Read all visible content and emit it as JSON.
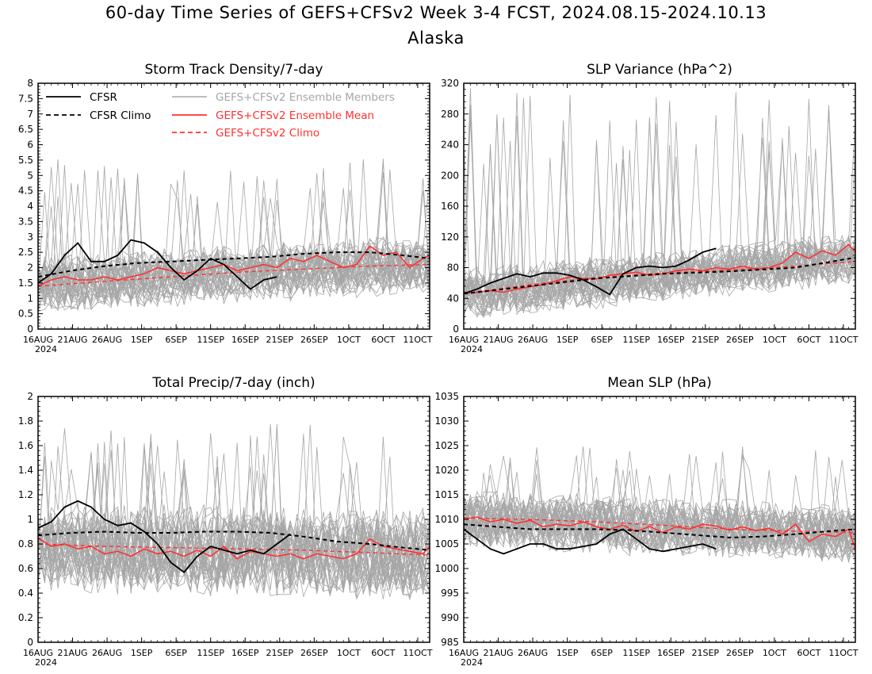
{
  "page": {
    "title": "60-day Time Series of GEFS+CFSv2 Week 3-4 FCST, 2024.08.15-2024.10.13",
    "subtitle": "Alaska"
  },
  "colors": {
    "cfsr": "#000000",
    "ensemble_members": "#a6a6a6",
    "ensemble_mean": "#ff3030",
    "background": "#ffffff"
  },
  "legend": {
    "items": [
      {
        "label": "CFSR",
        "style": "solid",
        "color": "#000000"
      },
      {
        "label": "CFSR Climo",
        "style": "dashed",
        "color": "#000000"
      },
      {
        "label": "GEFS+CFSv2 Ensemble Members",
        "style": "solid",
        "color": "#a6a6a6"
      },
      {
        "label": "GEFS+CFSv2 Ensemble Mean",
        "style": "solid",
        "color": "#ff3030"
      },
      {
        "label": "GEFS+CFSv2 Climo",
        "style": "dashed",
        "color": "#ff3030"
      }
    ]
  },
  "chart_data": [
    {
      "type": "line",
      "title": "Storm Track Density/7-day",
      "x_ticks": [
        "16AUG",
        "21AUG",
        "26AUG",
        "1SEP",
        "6SEP",
        "11SEP",
        "16SEP",
        "21SEP",
        "26SEP",
        "1OCT",
        "6OCT",
        "11OCT"
      ],
      "x_year": "2024",
      "x_range_days": [
        0,
        59
      ],
      "ylim": [
        0,
        8
      ],
      "y_ticks": [
        "0",
        "0.5",
        "1",
        "1.5",
        "2",
        "2.5",
        "3",
        "3.5",
        "4",
        "4.5",
        "5",
        "5.5",
        "6",
        "6.5",
        "7",
        "7.5",
        "8"
      ],
      "ensemble_members": {
        "count": 40,
        "base_start": 1.5,
        "base_end": 2.1,
        "spread": 0.7,
        "max_spike": 5.6
      },
      "series": [
        {
          "name": "CFSR",
          "x_days": [
            0,
            2,
            4,
            6,
            8,
            10,
            12,
            14,
            16,
            18,
            20,
            22,
            24,
            26,
            28,
            30,
            32,
            34,
            36,
            38,
            40
          ],
          "values": [
            1.5,
            1.8,
            2.4,
            2.8,
            2.2,
            2.2,
            2.4,
            2.9,
            2.8,
            2.5,
            2.0,
            1.6,
            1.9,
            2.3,
            2.1,
            1.7,
            1.3,
            1.6,
            1.7,
            null,
            null
          ]
        },
        {
          "name": "CFSR Climo",
          "x_days": [
            0,
            5,
            10,
            15,
            20,
            25,
            30,
            35,
            40,
            45,
            50,
            55,
            59
          ],
          "values": [
            1.7,
            1.9,
            2.05,
            2.15,
            2.2,
            2.25,
            2.3,
            2.35,
            2.45,
            2.5,
            2.5,
            2.4,
            2.3
          ]
        },
        {
          "name": "GEFS+CFSv2 Ensemble Mean",
          "x_days": [
            0,
            2,
            4,
            6,
            8,
            10,
            12,
            14,
            16,
            18,
            20,
            22,
            24,
            26,
            28,
            30,
            32,
            34,
            36,
            38,
            40,
            42,
            44,
            46,
            48,
            50,
            52,
            54,
            56,
            58,
            59
          ],
          "values": [
            1.4,
            1.6,
            1.7,
            1.6,
            1.6,
            1.7,
            1.6,
            1.7,
            1.8,
            2.0,
            1.9,
            1.8,
            1.9,
            2.0,
            2.1,
            1.9,
            2.0,
            2.1,
            2.0,
            2.3,
            2.2,
            2.4,
            2.2,
            2.0,
            2.1,
            2.7,
            2.4,
            2.5,
            2.0,
            2.3,
            2.4
          ]
        },
        {
          "name": "GEFS+CFSv2 Climo",
          "x_days": [
            0,
            10,
            20,
            30,
            40,
            50,
            59
          ],
          "values": [
            1.4,
            1.55,
            1.7,
            1.85,
            1.95,
            2.05,
            2.1
          ]
        }
      ]
    },
    {
      "type": "line",
      "title": "SLP Variance (hPa^2)",
      "x_ticks": [
        "16AUG",
        "21AUG",
        "26AUG",
        "1SEP",
        "6SEP",
        "11SEP",
        "16SEP",
        "21SEP",
        "26SEP",
        "1OCT",
        "6OCT",
        "11OCT"
      ],
      "x_year": "2024",
      "x_range_days": [
        0,
        59
      ],
      "ylim": [
        0,
        320
      ],
      "y_ticks": [
        "0",
        "40",
        "80",
        "120",
        "160",
        "200",
        "240",
        "280",
        "320"
      ],
      "ensemble_members": {
        "count": 40,
        "base_start": 45,
        "base_end": 92,
        "spread": 25,
        "max_spike": 315
      },
      "series": [
        {
          "name": "CFSR",
          "x_days": [
            0,
            2,
            4,
            6,
            8,
            10,
            12,
            14,
            16,
            18,
            20,
            22,
            24,
            26,
            28,
            30,
            32,
            34,
            36,
            38
          ],
          "values": [
            46,
            52,
            60,
            66,
            72,
            68,
            73,
            73,
            70,
            64,
            55,
            45,
            72,
            80,
            82,
            80,
            82,
            90,
            100,
            105
          ]
        },
        {
          "name": "CFSR Climo",
          "x_days": [
            0,
            10,
            20,
            30,
            40,
            50,
            59
          ],
          "values": [
            46,
            56,
            66,
            72,
            75,
            80,
            93
          ]
        },
        {
          "name": "GEFS+CFSv2 Ensemble Mean",
          "x_days": [
            0,
            2,
            4,
            6,
            8,
            10,
            12,
            14,
            16,
            18,
            20,
            22,
            24,
            26,
            28,
            30,
            32,
            34,
            36,
            38,
            40,
            42,
            44,
            46,
            48,
            50,
            52,
            54,
            56,
            58,
            59
          ],
          "values": [
            46,
            48,
            50,
            48,
            52,
            55,
            58,
            63,
            68,
            66,
            65,
            70,
            72,
            74,
            70,
            72,
            76,
            78,
            76,
            80,
            78,
            82,
            78,
            80,
            86,
            100,
            92,
            102,
            96,
            110,
            100
          ]
        },
        {
          "name": "GEFS+CFSv2 Climo",
          "x_days": [
            0,
            10,
            20,
            30,
            40,
            50,
            59
          ],
          "values": [
            46,
            58,
            67,
            73,
            77,
            82,
            88
          ]
        }
      ]
    },
    {
      "type": "line",
      "title": "Total Precip/7-day (inch)",
      "x_ticks": [
        "16AUG",
        "21AUG",
        "26AUG",
        "1SEP",
        "6SEP",
        "11SEP",
        "16SEP",
        "21SEP",
        "26SEP",
        "1OCT",
        "6OCT",
        "11OCT"
      ],
      "x_year": "2024",
      "x_range_days": [
        0,
        59
      ],
      "ylim": [
        0,
        2
      ],
      "y_ticks": [
        "0",
        "0.2",
        "0.4",
        "0.6",
        "0.8",
        "1",
        "1.2",
        "1.4",
        "1.6",
        "1.8",
        "2"
      ],
      "ensemble_members": {
        "count": 40,
        "base_start": 0.78,
        "base_end": 0.72,
        "spread": 0.28,
        "max_spike": 1.78
      },
      "series": [
        {
          "name": "CFSR",
          "x_days": [
            0,
            2,
            4,
            6,
            8,
            10,
            12,
            14,
            16,
            18,
            20,
            22,
            24,
            26,
            28,
            30,
            32,
            34,
            36,
            38
          ],
          "values": [
            0.93,
            0.98,
            1.1,
            1.15,
            1.1,
            1.0,
            0.95,
            0.97,
            0.9,
            0.8,
            0.65,
            0.57,
            0.7,
            0.78,
            0.75,
            0.72,
            0.75,
            0.72,
            0.8,
            0.88
          ]
        },
        {
          "name": "CFSR Climo",
          "x_days": [
            0,
            5,
            10,
            15,
            20,
            25,
            30,
            35,
            40,
            45,
            50,
            55,
            59
          ],
          "values": [
            0.87,
            0.89,
            0.9,
            0.89,
            0.89,
            0.9,
            0.9,
            0.89,
            0.86,
            0.82,
            0.8,
            0.77,
            0.75
          ]
        },
        {
          "name": "GEFS+CFSv2 Ensemble Mean",
          "x_days": [
            0,
            2,
            4,
            6,
            8,
            10,
            12,
            14,
            16,
            18,
            20,
            22,
            24,
            26,
            28,
            30,
            32,
            34,
            36,
            38,
            40,
            42,
            44,
            46,
            48,
            50,
            52,
            54,
            56,
            58,
            59
          ],
          "values": [
            0.85,
            0.78,
            0.8,
            0.76,
            0.78,
            0.72,
            0.74,
            0.7,
            0.76,
            0.72,
            0.74,
            0.7,
            0.75,
            0.7,
            0.78,
            0.68,
            0.74,
            0.72,
            0.7,
            0.72,
            0.68,
            0.72,
            0.7,
            0.68,
            0.72,
            0.84,
            0.78,
            0.76,
            0.74,
            0.72,
            0.78
          ]
        },
        {
          "name": "GEFS+CFSv2 Climo",
          "x_days": [
            0,
            10,
            20,
            30,
            40,
            50,
            59
          ],
          "values": [
            0.8,
            0.78,
            0.77,
            0.76,
            0.75,
            0.73,
            0.71
          ]
        }
      ]
    },
    {
      "type": "line",
      "title": "Mean SLP (hPa)",
      "x_ticks": [
        "16AUG",
        "21AUG",
        "26AUG",
        "1SEP",
        "6SEP",
        "11SEP",
        "16SEP",
        "21SEP",
        "26SEP",
        "1OCT",
        "6OCT",
        "11OCT"
      ],
      "x_year": "2024",
      "x_range_days": [
        0,
        59
      ],
      "ylim": [
        985,
        1035
      ],
      "y_ticks": [
        "985",
        "990",
        "995",
        "1000",
        "1005",
        "1010",
        "1015",
        "1020",
        "1025",
        "1030",
        "1035"
      ],
      "ensemble_members": {
        "count": 40,
        "base_start": 1010,
        "base_end": 1007,
        "spread": 4.5,
        "max_spike": 1025
      },
      "series": [
        {
          "name": "CFSR",
          "x_days": [
            0,
            2,
            4,
            6,
            8,
            10,
            12,
            14,
            16,
            18,
            20,
            22,
            24,
            26,
            28,
            30,
            32,
            34,
            36,
            38
          ],
          "values": [
            1008,
            1006,
            1004,
            1003,
            1004,
            1005,
            1005,
            1004,
            1004,
            1004.5,
            1005,
            1007,
            1008,
            1006,
            1004,
            1003.5,
            1004,
            1004.5,
            1005,
            1004
          ]
        },
        {
          "name": "CFSR Climo",
          "x_days": [
            0,
            5,
            10,
            15,
            20,
            25,
            30,
            35,
            40,
            45,
            50,
            55,
            59
          ],
          "values": [
            1009,
            1008.5,
            1008,
            1008,
            1008,
            1007.8,
            1007.3,
            1006.8,
            1006.3,
            1006.5,
            1007,
            1007.6,
            1008
          ]
        },
        {
          "name": "GEFS+CFSv2 Ensemble Mean",
          "x_days": [
            0,
            2,
            4,
            6,
            8,
            10,
            12,
            14,
            16,
            18,
            20,
            22,
            24,
            26,
            28,
            30,
            32,
            34,
            36,
            38,
            40,
            42,
            44,
            46,
            48,
            50,
            52,
            54,
            56,
            58,
            59
          ],
          "values": [
            1010,
            1010.5,
            1009.5,
            1010,
            1009.2,
            1009.8,
            1008.5,
            1009,
            1008.7,
            1009.5,
            1008.5,
            1008,
            1008.8,
            1007.5,
            1008.6,
            1007.3,
            1008.5,
            1008,
            1009,
            1008.7,
            1007.8,
            1008.5,
            1007.7,
            1008.2,
            1007,
            1009,
            1005.5,
            1007,
            1006.5,
            1008,
            1004
          ]
        },
        {
          "name": "GEFS+CFSv2 Climo",
          "x_days": [
            0,
            10,
            20,
            30,
            40,
            50,
            59
          ],
          "values": [
            1010.3,
            1010,
            1009.5,
            1008.8,
            1008,
            1007.6,
            1007.3
          ]
        }
      ]
    }
  ]
}
